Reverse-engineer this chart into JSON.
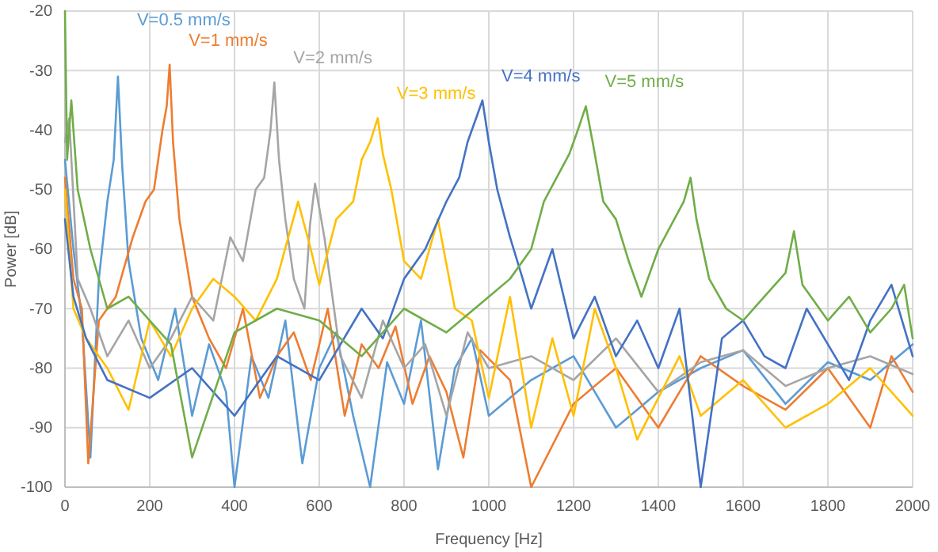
{
  "chart_data": {
    "type": "line",
    "xlabel": "Frequency [Hz]",
    "ylabel": "Power [dB]",
    "xlim": [
      0,
      2000
    ],
    "xticks": [
      0,
      200,
      400,
      600,
      800,
      1000,
      1200,
      1400,
      1600,
      1800,
      2000
    ],
    "ylim": [
      -100,
      -20
    ],
    "yticks": [
      -100,
      -90,
      -80,
      -70,
      -60,
      -50,
      -40,
      -30,
      -20
    ],
    "grid": true,
    "marker": "none",
    "line_style": "solid",
    "series": [
      {
        "name": "V=0.5 mm/s",
        "color": "#5b9bd5",
        "x": [
          0,
          20,
          40,
          60,
          80,
          100,
          115,
          125,
          135,
          150,
          180,
          220,
          260,
          300,
          340,
          380,
          400,
          440,
          480,
          520,
          560,
          600,
          640,
          680,
          720,
          760,
          800,
          840,
          880,
          920,
          960,
          1000,
          1100,
          1200,
          1300,
          1400,
          1500,
          1600,
          1700,
          1800,
          1900,
          2000
        ],
        "values": [
          -45,
          -60,
          -72,
          -95,
          -65,
          -52,
          -45,
          -31,
          -46,
          -62,
          -75,
          -82,
          -70,
          -88,
          -76,
          -84,
          -100,
          -78,
          -85,
          -72,
          -96,
          -80,
          -74,
          -88,
          -100,
          -79,
          -86,
          -72,
          -97,
          -80,
          -75,
          -88,
          -82,
          -78,
          -90,
          -84,
          -80,
          -77,
          -86,
          -79,
          -82,
          -76
        ]
      },
      {
        "name": "V=1 mm/s",
        "color": "#ed7d31",
        "x": [
          0,
          20,
          40,
          55,
          80,
          120,
          160,
          190,
          210,
          230,
          240,
          247,
          255,
          270,
          300,
          340,
          380,
          420,
          460,
          500,
          540,
          580,
          620,
          660,
          700,
          740,
          780,
          820,
          860,
          900,
          940,
          980,
          1050,
          1100,
          1200,
          1300,
          1400,
          1500,
          1600,
          1700,
          1800,
          1900,
          1950,
          2000
        ],
        "values": [
          -48,
          -65,
          -70,
          -96,
          -72,
          -68,
          -58,
          -52,
          -50,
          -40,
          -36,
          -29,
          -42,
          -55,
          -68,
          -75,
          -80,
          -70,
          -85,
          -78,
          -74,
          -82,
          -70,
          -88,
          -76,
          -80,
          -73,
          -86,
          -78,
          -84,
          -95,
          -77,
          -82,
          -100,
          -86,
          -80,
          -90,
          -78,
          -83,
          -87,
          -80,
          -90,
          -78,
          -84
        ]
      },
      {
        "name": "V=2 mm/s",
        "color": "#a5a5a5",
        "x": [
          0,
          10,
          30,
          60,
          100,
          150,
          200,
          250,
          300,
          350,
          390,
          420,
          450,
          470,
          485,
          494,
          505,
          520,
          540,
          565,
          578,
          590,
          612,
          650,
          700,
          750,
          800,
          850,
          900,
          950,
          1000,
          1100,
          1200,
          1300,
          1400,
          1500,
          1600,
          1700,
          1800,
          1900,
          2000
        ],
        "values": [
          -42,
          -38,
          -65,
          -70,
          -78,
          -72,
          -80,
          -75,
          -68,
          -72,
          -58,
          -62,
          -50,
          -48,
          -40,
          -32,
          -45,
          -55,
          -65,
          -70,
          -56,
          -49,
          -58,
          -78,
          -85,
          -72,
          -80,
          -76,
          -88,
          -74,
          -80,
          -78,
          -82,
          -75,
          -84,
          -79,
          -77,
          -83,
          -80,
          -78,
          -81
        ]
      },
      {
        "name": "V=3 mm/s",
        "color": "#ffc000",
        "x": [
          0,
          20,
          50,
          100,
          150,
          200,
          250,
          300,
          350,
          400,
          450,
          500,
          550,
          580,
          600,
          640,
          680,
          700,
          720,
          738,
          750,
          770,
          800,
          840,
          880,
          920,
          960,
          1000,
          1050,
          1100,
          1150,
          1200,
          1250,
          1300,
          1350,
          1400,
          1450,
          1500,
          1600,
          1700,
          1800,
          1900,
          2000
        ],
        "values": [
          -50,
          -70,
          -75,
          -80,
          -87,
          -72,
          -78,
          -70,
          -65,
          -68,
          -72,
          -65,
          -52,
          -60,
          -66,
          -55,
          -52,
          -45,
          -42,
          -38,
          -44,
          -50,
          -62,
          -65,
          -55,
          -70,
          -72,
          -85,
          -68,
          -90,
          -75,
          -88,
          -70,
          -80,
          -92,
          -85,
          -78,
          -88,
          -82,
          -90,
          -86,
          -80,
          -88
        ]
      },
      {
        "name": "V=4 mm/s",
        "color": "#4472c4",
        "x": [
          0,
          20,
          50,
          100,
          200,
          300,
          400,
          500,
          600,
          700,
          750,
          800,
          850,
          900,
          930,
          950,
          970,
          985,
          1000,
          1020,
          1050,
          1080,
          1100,
          1150,
          1200,
          1250,
          1300,
          1350,
          1400,
          1450,
          1500,
          1550,
          1600,
          1650,
          1700,
          1750,
          1800,
          1850,
          1900,
          1950,
          2000
        ],
        "values": [
          -55,
          -68,
          -75,
          -82,
          -85,
          -80,
          -88,
          -78,
          -82,
          -70,
          -75,
          -65,
          -60,
          -52,
          -48,
          -42,
          -38,
          -35,
          -42,
          -50,
          -58,
          -65,
          -70,
          -60,
          -75,
          -68,
          -78,
          -72,
          -80,
          -70,
          -100,
          -75,
          -72,
          -78,
          -80,
          -70,
          -76,
          -82,
          -72,
          -66,
          -78
        ]
      },
      {
        "name": "V=5 mm/s",
        "color": "#70ad47",
        "x": [
          0,
          5,
          15,
          30,
          60,
          100,
          150,
          200,
          250,
          300,
          400,
          500,
          600,
          700,
          800,
          900,
          1000,
          1050,
          1100,
          1130,
          1160,
          1190,
          1210,
          1229,
          1245,
          1270,
          1300,
          1330,
          1360,
          1400,
          1430,
          1460,
          1476,
          1490,
          1520,
          1560,
          1600,
          1650,
          1700,
          1720,
          1740,
          1800,
          1850,
          1900,
          1950,
          1980,
          2000
        ],
        "values": [
          -20,
          -45,
          -35,
          -50,
          -60,
          -70,
          -68,
          -72,
          -76,
          -95,
          -74,
          -70,
          -72,
          -78,
          -70,
          -74,
          -68,
          -65,
          -60,
          -52,
          -48,
          -44,
          -40,
          -36,
          -42,
          -52,
          -55,
          -62,
          -68,
          -60,
          -56,
          -52,
          -48,
          -55,
          -65,
          -70,
          -72,
          -68,
          -64,
          -57,
          -66,
          -72,
          -68,
          -74,
          -70,
          -66,
          -75
        ]
      }
    ]
  }
}
